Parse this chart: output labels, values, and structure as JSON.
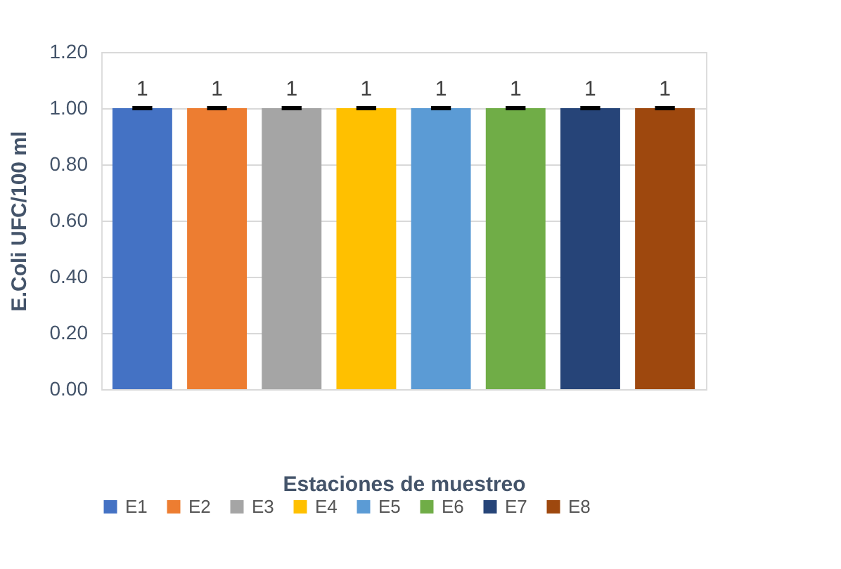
{
  "chart_data": {
    "type": "bar",
    "xlabel": "Estaciones de muestreo",
    "ylabel": "E.Coli UFC/100 ml",
    "categories": [
      null
    ],
    "series": [
      {
        "name": "E1",
        "color": "#4472c4",
        "values": [
          1
        ],
        "errors": [
          0
        ]
      },
      {
        "name": "E2",
        "color": "#ed7d31",
        "values": [
          1
        ],
        "errors": [
          0
        ]
      },
      {
        "name": "E3",
        "color": "#a5a5a5",
        "values": [
          1
        ],
        "errors": [
          0
        ]
      },
      {
        "name": "E4",
        "color": "#ffc000",
        "values": [
          1
        ],
        "errors": [
          0
        ]
      },
      {
        "name": "E5",
        "color": "#5b9bd5",
        "values": [
          1
        ],
        "errors": [
          0
        ]
      },
      {
        "name": "E6",
        "color": "#70ad47",
        "values": [
          1
        ],
        "errors": [
          0
        ]
      },
      {
        "name": "E7",
        "color": "#264478",
        "values": [
          1
        ],
        "errors": [
          0
        ]
      },
      {
        "name": "E8",
        "color": "#9e480e",
        "values": [
          1
        ],
        "errors": [
          0
        ]
      }
    ],
    "ylim": [
      0,
      1.2
    ],
    "yticks": [
      {
        "value": 0,
        "label": "0.00"
      },
      {
        "value": 0.2,
        "label": "0.20"
      },
      {
        "value": 0.4,
        "label": "0.40"
      },
      {
        "value": 0.6,
        "label": "0.60"
      },
      {
        "value": 0.8,
        "label": "0.80"
      },
      {
        "value": 1,
        "label": "1.00"
      },
      {
        "value": 1.2,
        "label": "1.20"
      }
    ],
    "grid": "y",
    "legend": "bottom",
    "data_labels": true,
    "tick_labels": "y"
  }
}
